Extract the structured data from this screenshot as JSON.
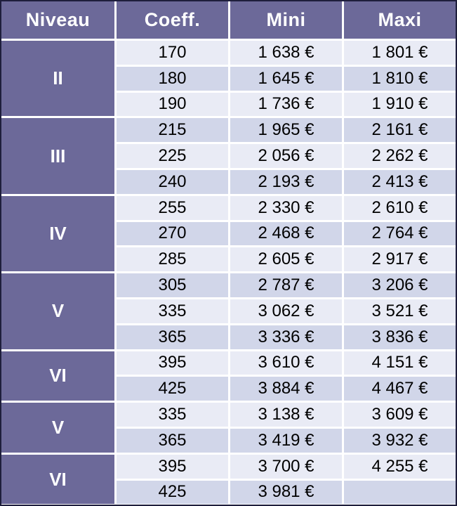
{
  "colors": {
    "header_bg": "#6C6999",
    "row_light": "#E9EBF5",
    "row_dark": "#D1D6E9",
    "outer_border": "#1E1E3C",
    "header_text": "#FFFFFF",
    "cell_text": "#000000"
  },
  "table": {
    "headers": [
      "Niveau",
      "Coeff.",
      "Mini",
      "Maxi"
    ],
    "groups": [
      {
        "niveau": "II",
        "rows": [
          [
            "170",
            "1 638 €",
            "1 801 €"
          ],
          [
            "180",
            "1 645 €",
            "1 810 €"
          ],
          [
            "190",
            "1 736 €",
            "1 910 €"
          ]
        ]
      },
      {
        "niveau": "III",
        "rows": [
          [
            "215",
            "1 965 €",
            "2 161 €"
          ],
          [
            "225",
            "2 056 €",
            "2 262 €"
          ],
          [
            "240",
            "2 193 €",
            "2 413 €"
          ]
        ]
      },
      {
        "niveau": "IV",
        "rows": [
          [
            "255",
            "2 330 €",
            "2 610 €"
          ],
          [
            "270",
            "2 468 €",
            "2 764 €"
          ],
          [
            "285",
            "2 605 €",
            "2 917 €"
          ]
        ]
      },
      {
        "niveau": "V",
        "rows": [
          [
            "305",
            "2 787 €",
            "3 206 €"
          ],
          [
            "335",
            "3 062 €",
            "3 521 €"
          ],
          [
            "365",
            "3 336 €",
            "3 836 €"
          ]
        ]
      },
      {
        "niveau": "VI",
        "rows": [
          [
            "395",
            "3 610 €",
            "4 151 €"
          ],
          [
            "425",
            "3 884 €",
            "4 467 €"
          ]
        ]
      },
      {
        "niveau": "V",
        "rows": [
          [
            "335",
            "3 138 €",
            "3 609 €"
          ],
          [
            "365",
            "3 419 €",
            "3 932 €"
          ]
        ]
      },
      {
        "niveau": "VI",
        "rows": [
          [
            "395",
            "3 700 €",
            "4 255 €"
          ],
          [
            "425",
            "3 981 €",
            ""
          ]
        ]
      }
    ]
  },
  "chart_data": {
    "type": "table",
    "title": "",
    "columns": [
      "Niveau",
      "Coeff.",
      "Mini",
      "Maxi"
    ],
    "rows": [
      [
        "II",
        "170",
        "1 638 €",
        "1 801 €"
      ],
      [
        "II",
        "180",
        "1 645 €",
        "1 810 €"
      ],
      [
        "II",
        "190",
        "1 736 €",
        "1 910 €"
      ],
      [
        "III",
        "215",
        "1 965 €",
        "2 161 €"
      ],
      [
        "III",
        "225",
        "2 056 €",
        "2 262 €"
      ],
      [
        "III",
        "240",
        "2 193 €",
        "2 413 €"
      ],
      [
        "IV",
        "255",
        "2 330 €",
        "2 610 €"
      ],
      [
        "IV",
        "270",
        "2 468 €",
        "2 764 €"
      ],
      [
        "IV",
        "285",
        "2 605 €",
        "2 917 €"
      ],
      [
        "V",
        "305",
        "2 787 €",
        "3 206 €"
      ],
      [
        "V",
        "335",
        "3 062 €",
        "3 521 €"
      ],
      [
        "V",
        "365",
        "3 336 €",
        "3 836 €"
      ],
      [
        "VI",
        "395",
        "3 610 €",
        "4 151 €"
      ],
      [
        "VI",
        "425",
        "3 884 €",
        "4 467 €"
      ],
      [
        "V",
        "335",
        "3 138 €",
        "3 609 €"
      ],
      [
        "V",
        "365",
        "3 419 €",
        "3 932 €"
      ],
      [
        "VI",
        "395",
        "3 700 €",
        "4 255 €"
      ],
      [
        "VI",
        "425",
        "3 981 €",
        ""
      ]
    ]
  }
}
